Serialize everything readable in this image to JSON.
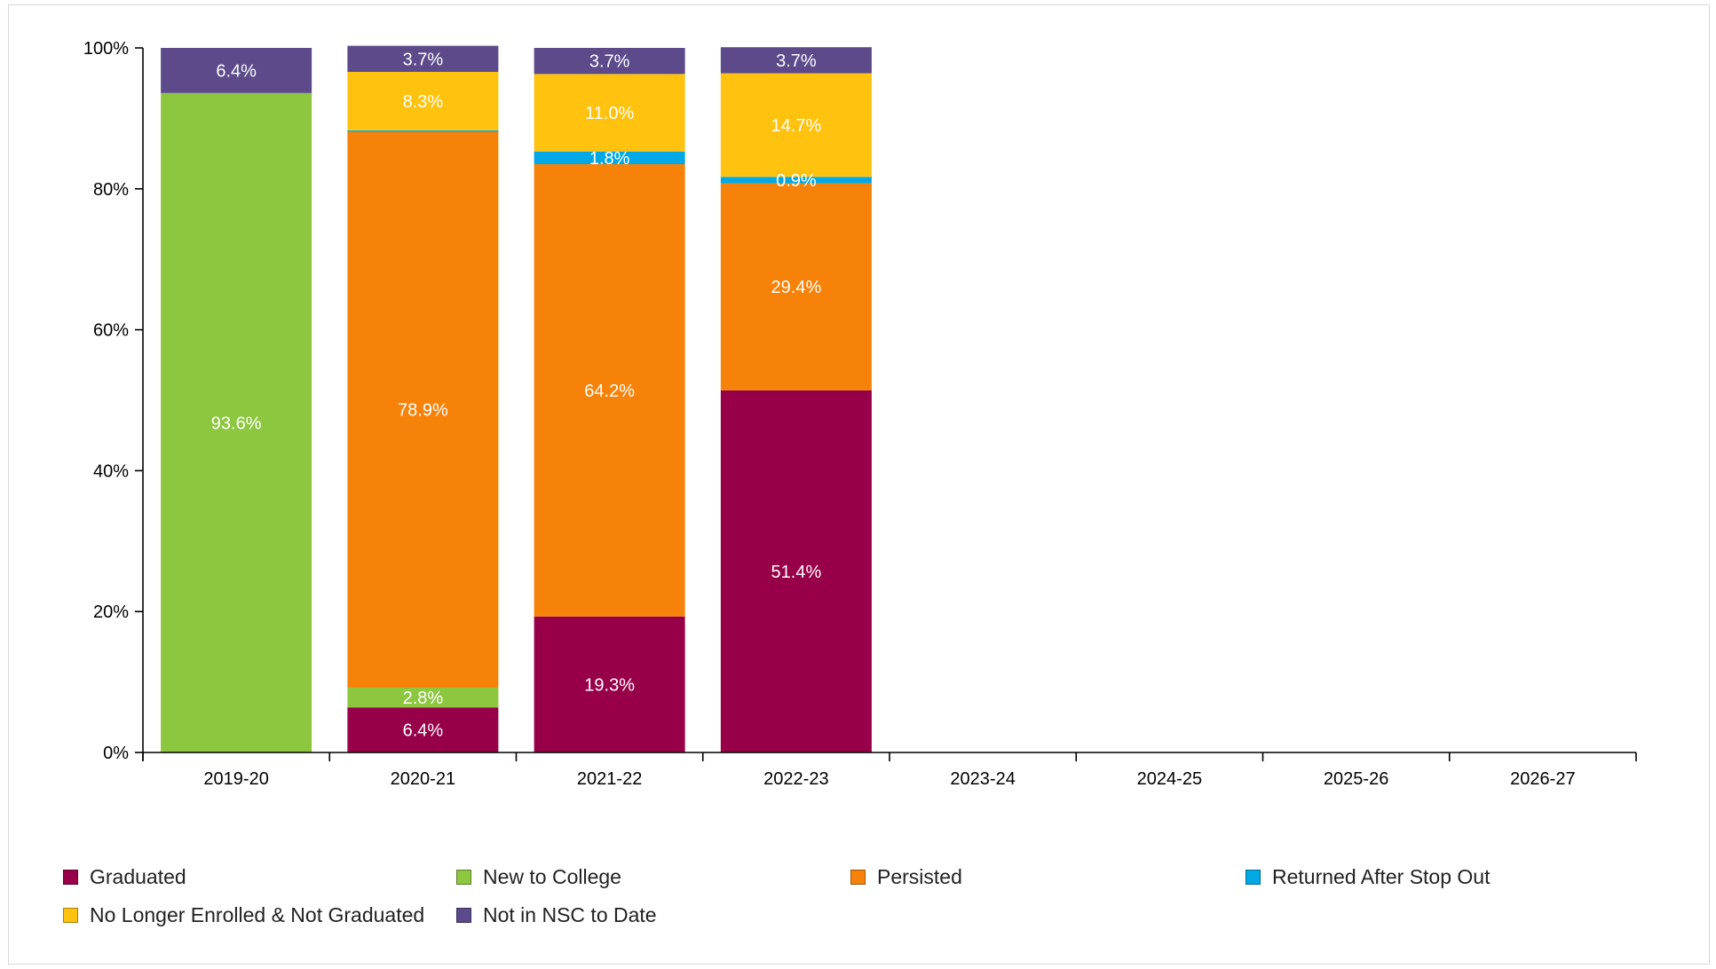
{
  "chart_data": {
    "type": "bar",
    "stacked": true,
    "categories": [
      "2019-20",
      "2020-21",
      "2021-22",
      "2022-23",
      "2023-24",
      "2024-25",
      "2025-26",
      "2026-27"
    ],
    "y_ticks": [
      "0%",
      "20%",
      "40%",
      "60%",
      "80%",
      "100%"
    ],
    "ylim": [
      0,
      100
    ],
    "series": [
      {
        "name": "Graduated",
        "color": "#970049",
        "values": [
          0,
          6.4,
          19.3,
          51.4,
          null,
          null,
          null,
          null
        ],
        "labels": [
          "",
          "6.4%",
          "19.3%",
          "51.4%",
          "",
          "",
          "",
          ""
        ]
      },
      {
        "name": "New to College",
        "color": "#8dc63f",
        "values": [
          93.6,
          2.8,
          0,
          0,
          null,
          null,
          null,
          null
        ],
        "labels": [
          "93.6%",
          "2.8%",
          "",
          "",
          "",
          "",
          "",
          ""
        ]
      },
      {
        "name": "Persisted",
        "color": "#f7820a",
        "values": [
          0,
          78.9,
          64.2,
          29.4,
          null,
          null,
          null,
          null
        ],
        "labels": [
          "",
          "78.9%",
          "64.2%",
          "29.4%",
          "",
          "",
          "",
          ""
        ]
      },
      {
        "name": "Returned After Stop Out",
        "color": "#00a9e6",
        "values": [
          0,
          0.2,
          1.8,
          0.9,
          null,
          null,
          null,
          null
        ],
        "labels": [
          "",
          "",
          "1.8%",
          "0.9%",
          "",
          "",
          "",
          ""
        ]
      },
      {
        "name": "No Longer Enrolled & Not Graduated",
        "color": "#ffc20e",
        "values": [
          0,
          8.3,
          11.0,
          14.7,
          null,
          null,
          null,
          null
        ],
        "labels": [
          "",
          "8.3%",
          "11.0%",
          "14.7%",
          "",
          "",
          "",
          ""
        ]
      },
      {
        "name": "Not in NSC to Date",
        "color": "#5c4a8a",
        "values": [
          6.4,
          3.7,
          3.7,
          3.7,
          null,
          null,
          null,
          null
        ],
        "labels": [
          "6.4%",
          "3.7%",
          "3.7%",
          "3.7%",
          "",
          "",
          "",
          ""
        ]
      }
    ],
    "legend_position": "bottom",
    "grid": false
  }
}
